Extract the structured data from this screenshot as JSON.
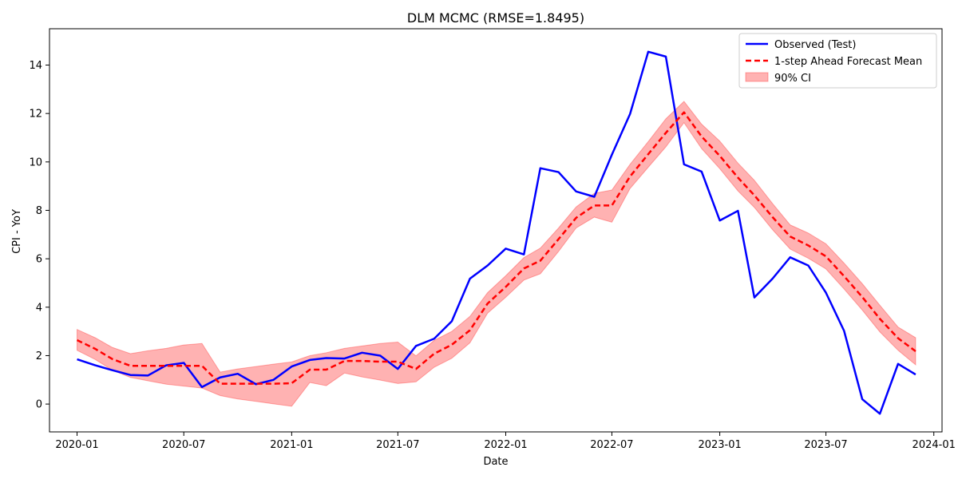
{
  "chart_data": {
    "type": "line",
    "title": "DLM MCMC (RMSE=1.8495)",
    "xlabel": "Date",
    "ylabel": "CPI - YoY",
    "x_range": [
      "2019-11-15",
      "2024-01-15"
    ],
    "ylim": [
      -1.15,
      15.5
    ],
    "x_ticks": [
      {
        "date": "2020-01-01",
        "label": "2020-01"
      },
      {
        "date": "2020-07-01",
        "label": "2020-07"
      },
      {
        "date": "2021-01-01",
        "label": "2021-01"
      },
      {
        "date": "2021-07-01",
        "label": "2021-07"
      },
      {
        "date": "2022-01-01",
        "label": "2022-01"
      },
      {
        "date": "2022-07-01",
        "label": "2022-07"
      },
      {
        "date": "2023-01-01",
        "label": "2023-01"
      },
      {
        "date": "2023-07-01",
        "label": "2023-07"
      },
      {
        "date": "2024-01-01",
        "label": "2024-01"
      }
    ],
    "y_ticks": [
      0,
      2,
      4,
      6,
      8,
      10,
      12,
      14
    ],
    "grid": false,
    "legend_position": "top-right",
    "x": [
      "2020-01-01",
      "2020-02-01",
      "2020-03-01",
      "2020-04-01",
      "2020-05-01",
      "2020-06-01",
      "2020-07-01",
      "2020-08-01",
      "2020-09-01",
      "2020-10-01",
      "2020-11-01",
      "2020-12-01",
      "2021-01-01",
      "2021-02-01",
      "2021-03-01",
      "2021-04-01",
      "2021-05-01",
      "2021-06-01",
      "2021-07-01",
      "2021-08-01",
      "2021-09-01",
      "2021-10-01",
      "2021-11-01",
      "2021-12-01",
      "2022-01-01",
      "2022-02-01",
      "2022-03-01",
      "2022-04-01",
      "2022-05-01",
      "2022-06-01",
      "2022-07-01",
      "2022-08-01",
      "2022-09-01",
      "2022-10-01",
      "2022-11-01",
      "2022-12-01",
      "2023-01-01",
      "2023-02-01",
      "2023-03-01",
      "2023-04-01",
      "2023-05-01",
      "2023-06-01",
      "2023-07-01",
      "2023-08-01",
      "2023-09-01",
      "2023-10-01",
      "2023-11-01",
      "2023-12-01"
    ],
    "series": [
      {
        "name": "Observed (Test)",
        "color": "#0000ff",
        "style": "solid",
        "values": [
          1.85,
          1.6,
          1.4,
          1.2,
          1.18,
          1.6,
          1.7,
          0.7,
          1.1,
          1.25,
          0.82,
          1.0,
          1.55,
          1.82,
          1.9,
          1.88,
          2.12,
          2.0,
          1.45,
          2.4,
          2.7,
          3.42,
          5.18,
          5.72,
          6.42,
          6.18,
          9.74,
          9.58,
          8.78,
          8.56,
          10.3,
          11.98,
          14.55,
          14.35,
          9.9,
          9.6,
          7.58,
          7.98,
          4.4,
          5.18,
          6.06,
          5.72,
          4.6,
          3.02,
          0.2,
          -0.4,
          1.66,
          1.22
        ]
      },
      {
        "name": "1-step Ahead Forecast Mean",
        "color": "#ff0000",
        "style": "dashed",
        "values": [
          2.64,
          2.28,
          1.86,
          1.58,
          1.58,
          1.58,
          1.58,
          1.58,
          0.84,
          0.84,
          0.84,
          0.84,
          0.86,
          1.42,
          1.42,
          1.78,
          1.78,
          1.75,
          1.75,
          1.45,
          2.08,
          2.45,
          3.05,
          4.15,
          4.84,
          5.6,
          5.92,
          6.81,
          7.69,
          8.2,
          8.2,
          9.4,
          10.32,
          11.2,
          12.05,
          11.05,
          10.25,
          9.35,
          8.62,
          7.72,
          6.92,
          6.55,
          6.1,
          5.28,
          4.42,
          3.52,
          2.72,
          2.18
        ]
      }
    ],
    "band": {
      "name": "90% CI",
      "color": "#ff0000",
      "opacity": 0.3,
      "lower": [
        2.22,
        1.84,
        1.4,
        1.1,
        0.96,
        0.82,
        0.74,
        0.66,
        0.35,
        0.21,
        0.11,
        0.01,
        -0.09,
        0.89,
        0.76,
        1.28,
        1.12,
        0.99,
        0.85,
        0.92,
        1.52,
        1.89,
        2.53,
        3.75,
        4.41,
        5.12,
        5.38,
        6.3,
        7.27,
        7.72,
        7.51,
        8.9,
        9.78,
        10.62,
        11.62,
        10.55,
        9.72,
        8.8,
        8.12,
        7.2,
        6.4,
        6.02,
        5.58,
        4.75,
        3.88,
        2.98,
        2.22,
        1.62
      ],
      "upper": [
        3.08,
        2.74,
        2.34,
        2.08,
        2.2,
        2.3,
        2.44,
        2.5,
        1.32,
        1.45,
        1.55,
        1.65,
        1.74,
        2.0,
        2.12,
        2.3,
        2.4,
        2.5,
        2.56,
        1.99,
        2.63,
        3.0,
        3.62,
        4.6,
        5.3,
        6.05,
        6.44,
        7.27,
        8.14,
        8.7,
        8.84,
        9.9,
        10.84,
        11.78,
        12.5,
        11.56,
        10.86,
        9.95,
        9.24,
        8.28,
        7.4,
        7.06,
        6.62,
        5.82,
        4.97,
        4.08,
        3.18,
        2.74
      ]
    }
  }
}
